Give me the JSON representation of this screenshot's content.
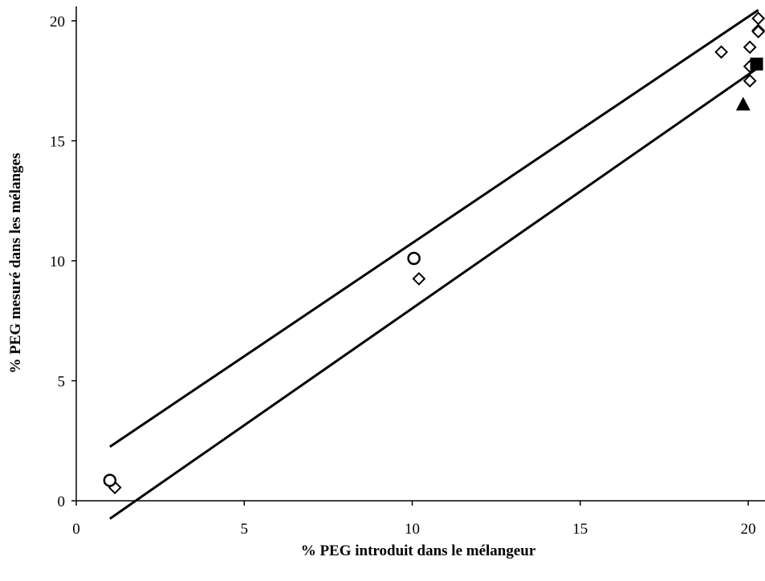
{
  "chart_data": {
    "type": "scatter",
    "xlabel": "% PEG introduit dans le mélangeur",
    "ylabel": "% PEG mesuré dans les mélanges",
    "xlim": [
      0,
      20.5
    ],
    "ylim": [
      0,
      20.6
    ],
    "xticks": [
      0,
      5,
      10,
      15,
      20
    ],
    "yticks": [
      0,
      5,
      10,
      15,
      20
    ],
    "xtick_labels": [
      "0",
      "5",
      "10",
      "15",
      "20"
    ],
    "ytick_labels": [
      "0",
      "5",
      "10",
      "15",
      "20"
    ],
    "grid": false,
    "legend": "none",
    "series": [
      {
        "marker": "diamond-open",
        "points": [
          {
            "x": 1.15,
            "y": 0.55
          },
          {
            "x": 10.2,
            "y": 9.25
          },
          {
            "x": 19.2,
            "y": 18.7
          },
          {
            "x": 20.05,
            "y": 18.9
          },
          {
            "x": 20.05,
            "y": 18.1
          },
          {
            "x": 20.05,
            "y": 17.5
          },
          {
            "x": 20.3,
            "y": 20.1
          },
          {
            "x": 20.3,
            "y": 19.6
          },
          {
            "x": 20.3,
            "y": 19.55
          }
        ]
      },
      {
        "marker": "circle-open",
        "points": [
          {
            "x": 1.0,
            "y": 0.85
          },
          {
            "x": 10.05,
            "y": 10.1
          }
        ]
      },
      {
        "marker": "square-filled",
        "points": [
          {
            "x": 20.25,
            "y": 18.2
          }
        ]
      },
      {
        "marker": "triangle-filled",
        "points": [
          {
            "x": 19.85,
            "y": 16.5
          }
        ]
      }
    ],
    "lines": [
      {
        "x": [
          1.0,
          20.3
        ],
        "y": [
          2.25,
          20.45
        ]
      },
      {
        "x": [
          1.0,
          20.3
        ],
        "y": [
          -0.75,
          18.05
        ]
      }
    ]
  }
}
